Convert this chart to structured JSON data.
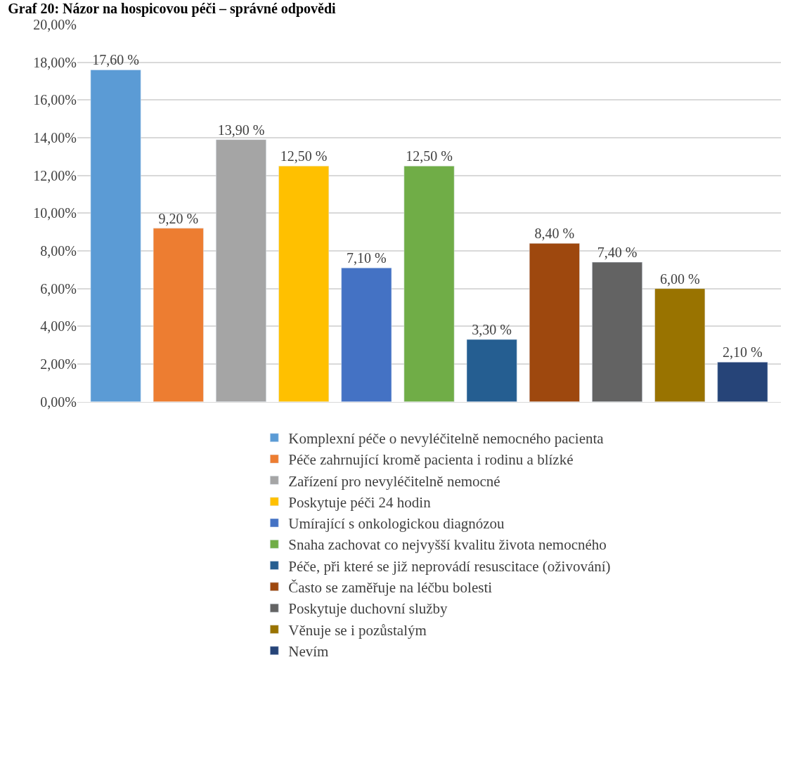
{
  "chart_data": {
    "type": "bar",
    "title": "Graf 20: Názor na hospicovou péči – správné odpovědi",
    "categories": [
      null
    ],
    "series": [
      {
        "name": "Komplexní péče o nevyléčitelně nemocného pacienta",
        "color": "#5b9bd5",
        "values": [
          17.6
        ],
        "value_labels": [
          "17,60 %"
        ]
      },
      {
        "name": "Péče zahrnující kromě pacienta i rodinu a blízké",
        "color": "#ed7d31",
        "values": [
          9.2
        ],
        "value_labels": [
          "9,20 %"
        ]
      },
      {
        "name": "Zařízení pro nevyléčitelně nemocné",
        "color": "#a5a5a5",
        "values": [
          13.9
        ],
        "value_labels": [
          "13,90 %"
        ]
      },
      {
        "name": "Poskytuje péči 24 hodin",
        "color": "#ffc000",
        "values": [
          12.5
        ],
        "value_labels": [
          "12,50 %"
        ]
      },
      {
        "name": "Umírající s onkologickou diagnózou",
        "color": "#4472c4",
        "values": [
          7.1
        ],
        "value_labels": [
          "7,10 %"
        ]
      },
      {
        "name": "Snaha zachovat co nejvyšší kvalitu života nemocného",
        "color": "#70ad47",
        "values": [
          12.5
        ],
        "value_labels": [
          "12,50 %"
        ]
      },
      {
        "name": "Péče, při které se již neprovádí resuscitace (oživování)",
        "color": "#255e91",
        "values": [
          3.3
        ],
        "value_labels": [
          "3,30 %"
        ]
      },
      {
        "name": "Často se zaměřuje na léčbu bolesti",
        "color": "#9e480e",
        "values": [
          8.4
        ],
        "value_labels": [
          "8,40 %"
        ]
      },
      {
        "name": "Poskytuje duchovní služby",
        "color": "#636363",
        "values": [
          7.4
        ],
        "value_labels": [
          "7,40 %"
        ]
      },
      {
        "name": "Věnuje se i pozůstalým",
        "color": "#997300",
        "values": [
          6.0
        ],
        "value_labels": [
          "6,00 %"
        ]
      },
      {
        "name": "Nevím",
        "color": "#264478",
        "values": [
          2.1
        ],
        "value_labels": [
          "2,10 %"
        ]
      }
    ],
    "ylim": [
      0,
      20
    ],
    "yticks": [
      {
        "value": 0,
        "label": "0,00%"
      },
      {
        "value": 2,
        "label": "2,00%"
      },
      {
        "value": 4,
        "label": "4,00%"
      },
      {
        "value": 6,
        "label": "6,00%"
      },
      {
        "value": 8,
        "label": "8,00%"
      },
      {
        "value": 10,
        "label": "10,00%"
      },
      {
        "value": 12,
        "label": "12,00%"
      },
      {
        "value": 14,
        "label": "14,00%"
      },
      {
        "value": 16,
        "label": "16,00%"
      },
      {
        "value": 18,
        "label": "18,00%"
      },
      {
        "value": 20,
        "label": "20,00%"
      }
    ],
    "grid": "y",
    "legend": "bottom"
  }
}
